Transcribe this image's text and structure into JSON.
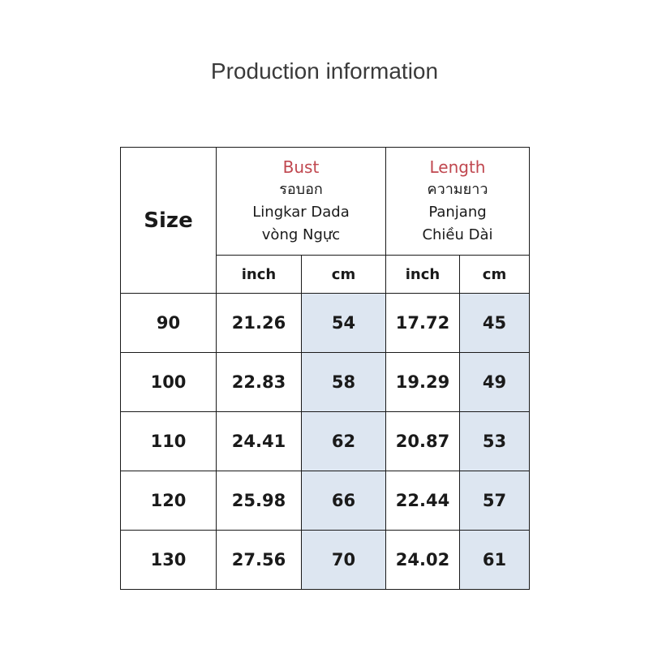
{
  "page": {
    "title": "Production information"
  },
  "table": {
    "size_label": "Size",
    "bust": {
      "label": "Bust",
      "translations": [
        "รอบอก",
        "Lingkar Dada",
        "vòng Ngực"
      ]
    },
    "length": {
      "label": "Length",
      "translations": [
        "ความยาว",
        "Panjang",
        "Chiều Dài"
      ]
    },
    "units": [
      "inch",
      "cm",
      "inch",
      "cm"
    ],
    "rows": [
      {
        "size": "90",
        "bust_inch": "21.26",
        "bust_cm": "54",
        "length_inch": "17.72",
        "length_cm": "45"
      },
      {
        "size": "100",
        "bust_inch": "22.83",
        "bust_cm": "58",
        "length_inch": "19.29",
        "length_cm": "49"
      },
      {
        "size": "110",
        "bust_inch": "24.41",
        "bust_cm": "62",
        "length_inch": "20.87",
        "length_cm": "53"
      },
      {
        "size": "120",
        "bust_inch": "25.98",
        "bust_cm": "66",
        "length_inch": "22.44",
        "length_cm": "57"
      },
      {
        "size": "130",
        "bust_inch": "27.56",
        "bust_cm": "70",
        "length_inch": "24.02",
        "length_cm": "61"
      }
    ]
  },
  "colors": {
    "accent": "#c0474f",
    "shaded_cell": "#dde6f1",
    "border": "#1a1a1a"
  }
}
